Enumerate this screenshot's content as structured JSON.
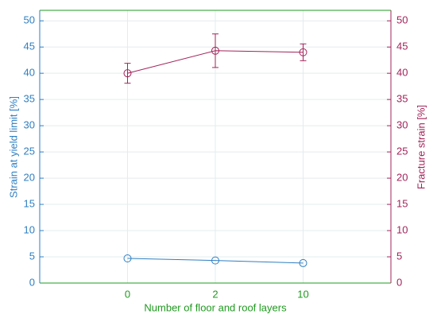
{
  "chart_data": {
    "type": "line",
    "xlabel": "Number of floor and roof layers",
    "ylabel": "Strain at yield limit [%]",
    "y2label": "Fracture strain [%]",
    "categories": [
      "0",
      "2",
      "10"
    ],
    "series": [
      {
        "name": "Strain at yield limit",
        "color": "#2f7fc1",
        "values": [
          4.7,
          4.3,
          3.8
        ]
      },
      {
        "name": "Fracture strain",
        "color": "#a2245a",
        "axis": "y2",
        "values": [
          40,
          44.3,
          44
        ],
        "errors": [
          1.9,
          3.2,
          1.6
        ]
      }
    ],
    "ylim": [
      0,
      52
    ],
    "yticks": [
      0,
      5,
      10,
      15,
      20,
      25,
      30,
      35,
      40,
      45,
      50
    ],
    "y2lim": [
      0,
      52
    ],
    "y2ticks": [
      0,
      5,
      10,
      15,
      20,
      25,
      30,
      35,
      40,
      45,
      50
    ],
    "grid": true,
    "axis_color": "#1f9a1f"
  }
}
